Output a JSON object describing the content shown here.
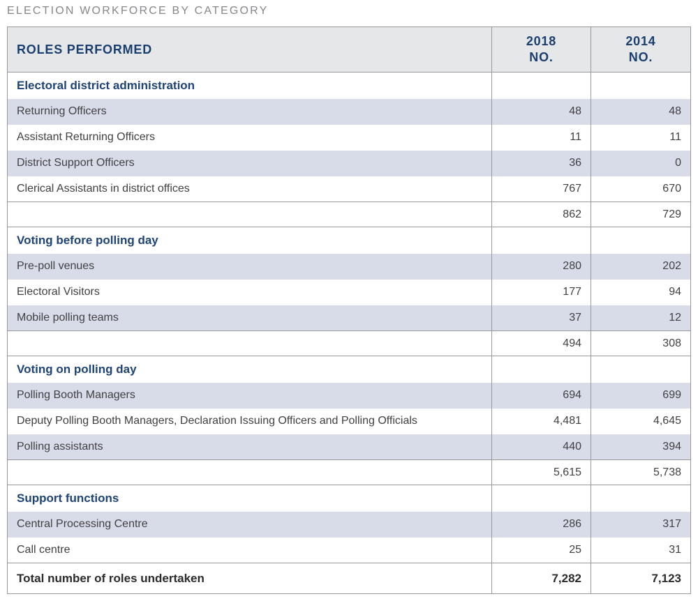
{
  "title": "ELECTION WORKFORCE BY CATEGORY",
  "colors": {
    "title_gray": "#85878a",
    "header_bg": "#e6e7e8",
    "header_navy": "#1a3e6e",
    "section_blue": "#1d4379",
    "row_shade": "#d8dce9",
    "border_gray": "#97999c",
    "body_text": "#414042"
  },
  "header": {
    "roles": "ROLES PERFORMED",
    "col_2018": {
      "year": "2018",
      "unit": "NO."
    },
    "col_2014": {
      "year": "2014",
      "unit": "NO."
    }
  },
  "rows": [
    {
      "type": "section",
      "shaded": false,
      "label": "Electoral district administration",
      "v2018": "",
      "v2014": ""
    },
    {
      "type": "data",
      "shaded": true,
      "label": "Returning Officers",
      "v2018": "48",
      "v2014": "48"
    },
    {
      "type": "data",
      "shaded": false,
      "label": "Assistant Returning Officers",
      "v2018": "11",
      "v2014": "11"
    },
    {
      "type": "data",
      "shaded": true,
      "label": "District Support Officers",
      "v2018": "36",
      "v2014": "0"
    },
    {
      "type": "data",
      "shaded": false,
      "label": "Clerical Assistants in district offices",
      "v2018": "767",
      "v2014": "670"
    },
    {
      "type": "subtotal",
      "shaded": false,
      "label": "",
      "v2018": "862",
      "v2014": "729"
    },
    {
      "type": "section",
      "shaded": false,
      "label": "Voting before polling day",
      "v2018": "",
      "v2014": ""
    },
    {
      "type": "data",
      "shaded": true,
      "label": "Pre-poll venues",
      "v2018": "280",
      "v2014": "202"
    },
    {
      "type": "data",
      "shaded": false,
      "label": "Electoral Visitors",
      "v2018": "177",
      "v2014": "94"
    },
    {
      "type": "data",
      "shaded": true,
      "label": "Mobile polling teams",
      "v2018": "37",
      "v2014": "12"
    },
    {
      "type": "subtotal",
      "shaded": false,
      "label": "",
      "v2018": "494",
      "v2014": "308"
    },
    {
      "type": "section",
      "shaded": false,
      "label": "Voting on polling day",
      "v2018": "",
      "v2014": ""
    },
    {
      "type": "data",
      "shaded": true,
      "label": "Polling Booth Managers",
      "v2018": "694",
      "v2014": "699"
    },
    {
      "type": "data",
      "shaded": false,
      "label": "Deputy Polling Booth Managers, Declaration Issuing Officers and Polling Officials",
      "v2018": "4,481",
      "v2014": "4,645"
    },
    {
      "type": "data",
      "shaded": true,
      "label": "Polling assistants",
      "v2018": "440",
      "v2014": "394"
    },
    {
      "type": "subtotal",
      "shaded": false,
      "label": "",
      "v2018": "5,615",
      "v2014": "5,738"
    },
    {
      "type": "section",
      "shaded": false,
      "label": "Support functions",
      "v2018": "",
      "v2014": ""
    },
    {
      "type": "data",
      "shaded": true,
      "label": "Central Processing Centre",
      "v2018": "286",
      "v2014": "317"
    },
    {
      "type": "data",
      "shaded": false,
      "label": "Call centre",
      "v2018": "25",
      "v2014": "31"
    },
    {
      "type": "total",
      "shaded": false,
      "label": "Total number of roles undertaken",
      "v2018": "7,282",
      "v2014": "7,123"
    }
  ]
}
